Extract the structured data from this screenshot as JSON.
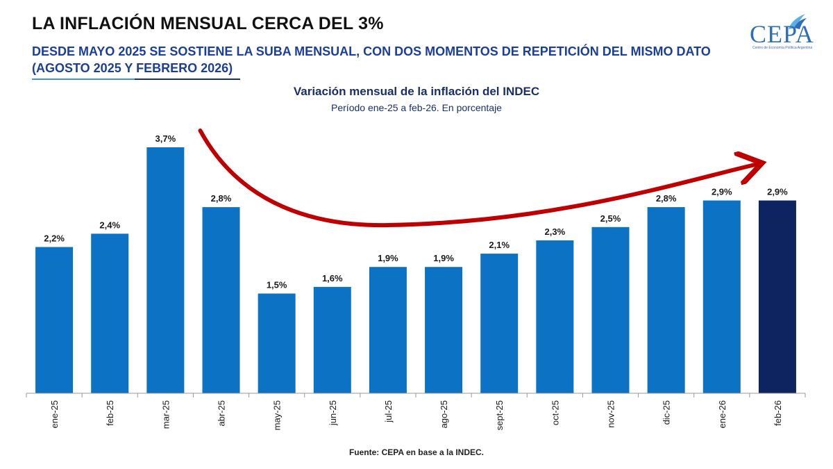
{
  "header": {
    "title": "LA INFLACIÓN MENSUAL CERCA DEL 3%",
    "subtitle": "DESDE MAYO 2025 SE SOSTIENE LA SUBA MENSUAL, CON DOS MOMENTOS DE REPETICIÓN DEL MISMO DATO (AGOSTO 2025 Y FEBRERO 2026)"
  },
  "logo": {
    "text": "CEPA",
    "tagline": "Centro de Economía Política Argentina"
  },
  "footer": {
    "source": "Fuente: CEPA en base a la INDEC."
  },
  "colors": {
    "bar": "#0b72c4",
    "bar_highlight": "#0e2460",
    "arrow": "#c00000",
    "title": "#1a3e9a"
  },
  "chart_data": {
    "type": "bar",
    "title": "Variación mensual de la inflación del INDEC",
    "subtitle": "Período ene-25 a feb-26. En porcentaje",
    "categories": [
      "ene-25",
      "feb-25",
      "mar-25",
      "abr-25",
      "may-25",
      "jun-25",
      "jul-25",
      "ago-25",
      "sept-25",
      "oct-25",
      "nov-25",
      "dic-25",
      "ene-26",
      "feb-26"
    ],
    "values": [
      2.2,
      2.4,
      3.7,
      2.8,
      1.5,
      1.6,
      1.9,
      1.9,
      2.1,
      2.3,
      2.5,
      2.8,
      2.9,
      2.9
    ],
    "data_labels": [
      "2,2%",
      "2,4%",
      "3,7%",
      "2,8%",
      "1,5%",
      "1,6%",
      "1,9%",
      "1,9%",
      "2,1%",
      "2,3%",
      "2,5%",
      "2,8%",
      "2,9%",
      "2,9%"
    ],
    "highlight_index": 13,
    "ylim": [
      0,
      3.7
    ],
    "xlabel": "",
    "ylabel": "",
    "grid": false,
    "legend": "none",
    "annotation": "red curved arrow trending upward from abr-25 to feb-26"
  }
}
